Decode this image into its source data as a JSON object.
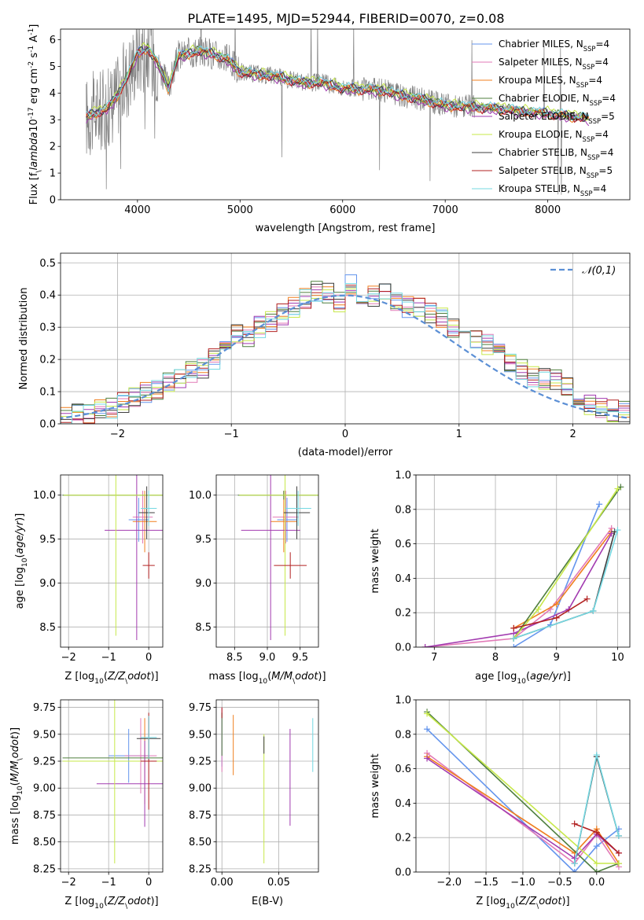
{
  "title": "PLATE=1495, MJD=52944, FIBERID=0070, z=0.08",
  "colors": {
    "series": [
      "#6495ed",
      "#e27ab7",
      "#f07f1f",
      "#4f7f3f",
      "#a23bb0",
      "#c7e84a",
      "#3f3f3f",
      "#b22222",
      "#74d8e2"
    ],
    "spectrum": "#808080",
    "gauss": "#5b8fd5"
  },
  "legend_labels": [
    "Chabrier MILES, N$_{SSP}$=4",
    "Salpeter MILES, N$_{SSP}$=4",
    "Kroupa MILES, N$_{SSP}$=4",
    "Chabrier ELODIE, N$_{SSP}$=4",
    "Salpeter ELODIE, N$_{SSP}$=5",
    "Kroupa ELODIE, N$_{SSP}$=4",
    "Chabrier STELIB, N$_{SSP}$=4",
    "Salpeter STELIB, N$_{SSP}$=5",
    "Kroupa STELIB, N$_{SSP}$=4"
  ],
  "chart_data": [
    {
      "type": "line",
      "panel": "spectrum",
      "xlabel": "wavelength [Angstrom, rest frame]",
      "ylabel": "Flux [f$_\\lambda$10$^{-17}$ erg cm$^{-2}$ s$^{-1}$ A$^{-1}$]",
      "xlim": [
        3250,
        8800
      ],
      "ylim": [
        0,
        6.4
      ],
      "xticks": [
        "4000",
        "5000",
        "6000",
        "7000",
        "8000"
      ],
      "yticks": [
        "0",
        "1",
        "2",
        "3",
        "4",
        "5",
        "6"
      ],
      "legend_position": "top-right",
      "model_curve": {
        "x": [
          3500,
          3600,
          3700,
          3800,
          3900,
          4000,
          4100,
          4200,
          4300,
          4400,
          4500,
          4600,
          4700,
          4800,
          4900,
          5000,
          5200,
          5400,
          5600,
          5800,
          6000,
          6200,
          6400,
          6600,
          6800,
          7000,
          7200,
          7400,
          7600,
          7800,
          8000,
          8200,
          8400
        ],
        "y": [
          3.1,
          3.3,
          3.4,
          3.9,
          4.6,
          5.5,
          5.7,
          5.1,
          4.2,
          5.4,
          5.5,
          5.6,
          5.5,
          5.4,
          5.2,
          4.8,
          4.7,
          4.6,
          4.4,
          4.4,
          4.2,
          4.15,
          4.1,
          3.9,
          3.75,
          3.55,
          3.5,
          3.45,
          3.4,
          3.3,
          3.25,
          3.15,
          3.05
        ]
      }
    },
    {
      "type": "step",
      "panel": "residuals",
      "xlabel": "(data-model)/error",
      "ylabel": "Normed distribution",
      "xlim": [
        -2.5,
        2.5
      ],
      "ylim": [
        0,
        0.53
      ],
      "xticks": [
        "−2",
        "−1",
        "0",
        "1",
        "2"
      ],
      "yticks": [
        "0.0",
        "0.1",
        "0.2",
        "0.3",
        "0.4",
        "0.5"
      ],
      "legend": "$\\mathcal{N}(0,1)$",
      "bins_x": [
        -2.6,
        -2.5,
        -2.4,
        -2.3,
        -2.2,
        -2.1,
        -2.0,
        -1.9,
        -1.8,
        -1.7,
        -1.6,
        -1.5,
        -1.4,
        -1.3,
        -1.2,
        -1.1,
        -1.0,
        -0.9,
        -0.8,
        -0.7,
        -0.6,
        -0.5,
        -0.4,
        -0.3,
        -0.2,
        -0.1,
        0.0,
        0.1,
        0.2,
        0.3,
        0.4,
        0.5,
        0.6,
        0.7,
        0.8,
        0.9,
        1.0,
        1.1,
        1.2,
        1.3,
        1.4,
        1.5,
        1.6,
        1.7,
        1.8,
        1.9,
        2.0,
        2.1,
        2.2,
        2.3,
        2.4,
        2.5
      ],
      "base_values": [
        0.02,
        0.025,
        0.03,
        0.035,
        0.04,
        0.05,
        0.065,
        0.08,
        0.095,
        0.11,
        0.13,
        0.145,
        0.16,
        0.17,
        0.2,
        0.23,
        0.28,
        0.27,
        0.3,
        0.32,
        0.34,
        0.36,
        0.39,
        0.41,
        0.41,
        0.38,
        0.43,
        0.4,
        0.4,
        0.41,
        0.38,
        0.36,
        0.36,
        0.34,
        0.33,
        0.3,
        0.28,
        0.27,
        0.25,
        0.22,
        0.19,
        0.17,
        0.15,
        0.14,
        0.14,
        0.11,
        0.08,
        0.06,
        0.05,
        0.04,
        0.035,
        0.03
      ]
    },
    {
      "type": "errorbar",
      "panel": "Z-age",
      "xlabel": "Z [log$_{10}$($Z/Z_\\odot$)]",
      "ylabel": "age  [log$_{10}$($age/yr$)]",
      "xlim": [
        -2.2,
        0.35
      ],
      "ylim": [
        8.27,
        10.23
      ],
      "xticks": [
        "−2",
        "−1",
        "0"
      ],
      "yticks": [
        "8.5",
        "9.0",
        "9.5",
        "10.0"
      ],
      "points": [
        {
          "x": -0.25,
          "y": 9.72,
          "xerr": 0.25,
          "yerr": 0.25
        },
        {
          "x": -0.15,
          "y": 9.75,
          "xerr": 0.25,
          "yerr": 0.3
        },
        {
          "x": -0.1,
          "y": 9.7,
          "xerr": 0.3,
          "yerr": 0.35
        },
        {
          "x": -0.85,
          "y": 10.0,
          "xerr": 1.3,
          "yerr": 0.0
        },
        {
          "x": -0.3,
          "y": 9.6,
          "xerr": 0.8,
          "yerr": 1.25
        },
        {
          "x": -0.82,
          "y": 10.0,
          "xerr": 1.3,
          "yerr": 1.6
        },
        {
          "x": -0.05,
          "y": 9.8,
          "xerr": 0.2,
          "yerr": 0.3
        },
        {
          "x": 0.0,
          "y": 9.2,
          "xerr": 0.15,
          "yerr": 0.15
        },
        {
          "x": 0.0,
          "y": 9.85,
          "xerr": 0.2,
          "yerr": 0.2
        }
      ]
    },
    {
      "type": "errorbar",
      "panel": "mass-age",
      "xlabel": "mass [log$_{10}$($M/M_\\odot$)]",
      "ylabel": "",
      "xlim": [
        8.22,
        9.78
      ],
      "ylim": [
        8.27,
        10.23
      ],
      "xticks": [
        "8.5",
        "9.0",
        "9.5"
      ],
      "yticks": [
        "8.5",
        "9.0",
        "9.5",
        "10.0"
      ],
      "points": [
        {
          "x": 9.3,
          "y": 9.72,
          "xerr": 0.15,
          "yerr": 0.25
        },
        {
          "x": 9.28,
          "y": 9.75,
          "xerr": 0.2,
          "yerr": 0.3
        },
        {
          "x": 9.25,
          "y": 9.7,
          "xerr": 0.2,
          "yerr": 0.35
        },
        {
          "x": 9.25,
          "y": 10.0,
          "xerr": 0.7,
          "yerr": 0.05
        },
        {
          "x": 9.05,
          "y": 9.6,
          "xerr": 0.45,
          "yerr": 1.25
        },
        {
          "x": 9.27,
          "y": 10.0,
          "xerr": 0.7,
          "yerr": 1.6
        },
        {
          "x": 9.45,
          "y": 9.8,
          "xerr": 0.2,
          "yerr": 0.3
        },
        {
          "x": 9.35,
          "y": 9.2,
          "xerr": 0.25,
          "yerr": 0.15
        },
        {
          "x": 9.47,
          "y": 9.85,
          "xerr": 0.2,
          "yerr": 0.2
        }
      ]
    },
    {
      "type": "line",
      "panel": "age-weight",
      "xlabel": "age  [log$_{10}$($age/yr$)]",
      "ylabel": "mass weight",
      "xlim": [
        6.7,
        10.2
      ],
      "ylim": [
        0,
        1.0
      ],
      "xticks": [
        "7",
        "8",
        "9",
        "10"
      ],
      "yticks": [
        "0.0",
        "0.2",
        "0.4",
        "0.6",
        "0.8",
        "1.0"
      ],
      "series": [
        {
          "x": [
            8.3,
            8.9,
            9.7
          ],
          "y": [
            0.0,
            0.13,
            0.83
          ]
        },
        {
          "x": [
            6.85,
            8.3,
            8.9,
            9.9
          ],
          "y": [
            0.0,
            0.05,
            0.22,
            0.69
          ]
        },
        {
          "x": [
            8.3,
            9.0,
            9.9
          ],
          "y": [
            0.11,
            0.25,
            0.67
          ]
        },
        {
          "x": [
            8.3,
            10.05
          ],
          "y": [
            0.05,
            0.93
          ]
        },
        {
          "x": [
            6.85,
            8.3,
            9.2,
            9.9
          ],
          "y": [
            0.0,
            0.08,
            0.22,
            0.66
          ]
        },
        {
          "x": [
            8.3,
            8.7,
            10.0
          ],
          "y": [
            0.05,
            0.22,
            0.92
          ]
        },
        {
          "x": [
            8.3,
            9.6,
            9.95
          ],
          "y": [
            0.05,
            0.21,
            0.67
          ]
        },
        {
          "x": [
            8.3,
            9.0,
            9.5
          ],
          "y": [
            0.11,
            0.17,
            0.28
          ]
        },
        {
          "x": [
            8.3,
            9.6,
            10.0
          ],
          "y": [
            0.05,
            0.21,
            0.68
          ]
        }
      ]
    },
    {
      "type": "errorbar",
      "panel": "Z-mass",
      "xlabel": "Z [log$_{10}$($Z/Z_\\odot$)]",
      "ylabel": "mass [log$_{10}$($M/M_\\odot$)]",
      "xlim": [
        -2.2,
        0.35
      ],
      "ylim": [
        8.22,
        9.82
      ],
      "xticks": [
        "−2",
        "−1",
        "0"
      ],
      "yticks": [
        "8.25",
        "8.50",
        "8.75",
        "9.00",
        "9.25",
        "9.50",
        "9.75"
      ],
      "points": [
        {
          "x": -0.5,
          "y": 9.3,
          "xerr": 0.5,
          "yerr": 0.25
        },
        {
          "x": -0.2,
          "y": 9.3,
          "xerr": 0.4,
          "yerr": 0.35
        },
        {
          "x": -0.1,
          "y": 9.25,
          "xerr": 0.3,
          "yerr": 0.4
        },
        {
          "x": -0.85,
          "y": 9.28,
          "xerr": 1.3,
          "yerr": 0.0
        },
        {
          "x": -0.1,
          "y": 9.04,
          "xerr": 1.2,
          "yerr": 0.4
        },
        {
          "x": -0.85,
          "y": 9.25,
          "xerr": 1.3,
          "yerr": 0.95
        },
        {
          "x": 0.0,
          "y": 9.46,
          "xerr": 0.3,
          "yerr": 0.2
        },
        {
          "x": 0.0,
          "y": 9.25,
          "xerr": 0.2,
          "yerr": 0.45
        },
        {
          "x": 0.0,
          "y": 9.47,
          "xerr": 0.2,
          "yerr": 0.2
        }
      ]
    },
    {
      "type": "errorbar",
      "panel": "EBV-mass",
      "xlabel": "E(B-V)",
      "ylabel": "",
      "xlim": [
        -0.005,
        0.085
      ],
      "ylim": [
        8.22,
        9.82
      ],
      "xticks": [
        "0.00",
        "0.05"
      ],
      "yticks": [
        "8.25",
        "8.50",
        "8.75",
        "9.00",
        "9.25",
        "9.50",
        "9.75"
      ],
      "points": [
        {
          "x": 0.0,
          "y": 9.45,
          "yerr": 0.25
        },
        {
          "x": 0.0,
          "y": 9.45,
          "yerr": 0.3
        },
        {
          "x": 0.01,
          "y": 9.4,
          "yerr": 0.28
        },
        {
          "x": 0.0,
          "y": 9.5,
          "yerr": 0.2
        },
        {
          "x": 0.06,
          "y": 9.1,
          "yerr": 0.45
        },
        {
          "x": 0.037,
          "y": 8.9,
          "yerr": 0.6
        },
        {
          "x": 0.037,
          "y": 9.4,
          "yerr": 0.08
        },
        {
          "x": 0.0,
          "y": 9.7,
          "yerr": 0.05
        },
        {
          "x": 0.08,
          "y": 9.4,
          "yerr": 0.25
        }
      ]
    },
    {
      "type": "line",
      "panel": "Z-weight",
      "xlabel": "Z [log$_{10}$($Z/Z_\\odot$)]",
      "ylabel": "mass weight",
      "xlim": [
        -2.45,
        0.45
      ],
      "ylim": [
        0,
        1.0
      ],
      "xticks": [
        "−2.0",
        "−1.5",
        "−1.0",
        "−0.5",
        "0.0"
      ],
      "yticks": [
        "0.0",
        "0.2",
        "0.4",
        "0.6",
        "0.8",
        "1.0"
      ],
      "series": [
        {
          "x": [
            -2.3,
            -0.3,
            0.0,
            0.3
          ],
          "y": [
            0.83,
            0.0,
            0.15,
            0.25
          ]
        },
        {
          "x": [
            -2.3,
            -0.3,
            0.0,
            0.3
          ],
          "y": [
            0.69,
            0.05,
            0.22,
            0.03
          ]
        },
        {
          "x": [
            -2.3,
            -0.3,
            0.0,
            0.3
          ],
          "y": [
            0.67,
            0.11,
            0.25,
            0.05
          ]
        },
        {
          "x": [
            -2.3,
            0.0,
            0.3
          ],
          "y": [
            0.93,
            0.0,
            0.05
          ]
        },
        {
          "x": [
            -2.3,
            -0.3,
            0.0,
            0.3
          ],
          "y": [
            0.66,
            0.08,
            0.22,
            0.11
          ]
        },
        {
          "x": [
            -2.3,
            0.0,
            0.3
          ],
          "y": [
            0.92,
            0.05,
            0.05
          ]
        },
        {
          "x": [
            -0.3,
            0.0,
            0.3
          ],
          "y": [
            0.05,
            0.67,
            0.21
          ]
        },
        {
          "x": [
            -0.3,
            0.0,
            0.3
          ],
          "y": [
            0.28,
            0.23,
            0.11
          ]
        },
        {
          "x": [
            -0.3,
            0.0,
            0.3
          ],
          "y": [
            0.05,
            0.68,
            0.21
          ]
        }
      ]
    }
  ]
}
